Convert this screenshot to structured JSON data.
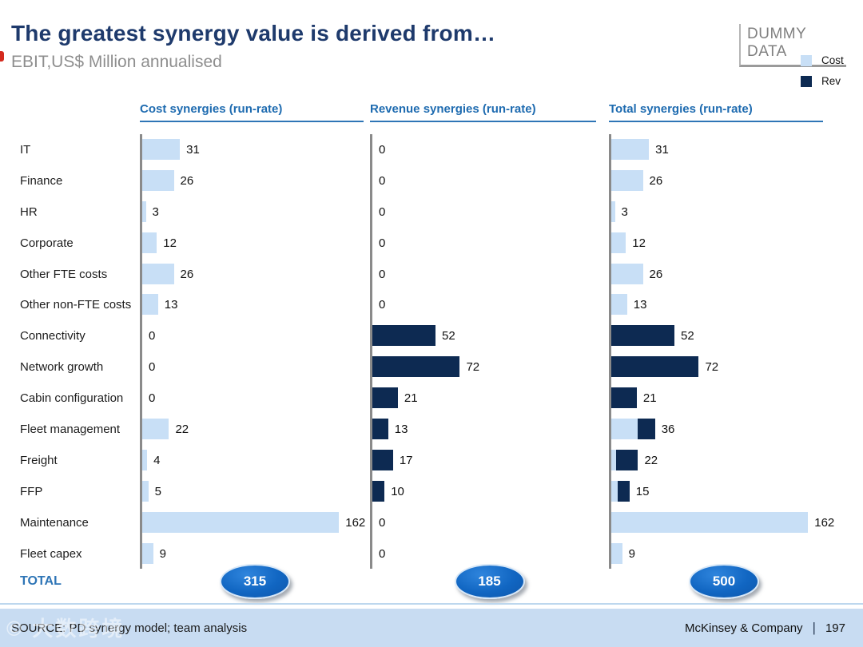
{
  "title": "The greatest synergy value is derived from…",
  "subtitle": "EBIT,US$ Million annualised",
  "stamp": "DUMMY DATA",
  "colors": {
    "cost_bar": "#C8DFF6",
    "rev_bar": "#0D2A52",
    "header_blue": "#1E6BB0",
    "underline_blue": "#2E75B6",
    "title_navy": "#1E3A6C",
    "oval_blue": "#1166C2",
    "axis_gray": "#8A8A8A",
    "footer_band": "#C8DCF2"
  },
  "chart_data": {
    "type": "bar",
    "orientation": "horizontal",
    "title": "The greatest synergy value is derived from…",
    "subtitle": "EBIT,US$ Million annualised",
    "legend": [
      "Cost",
      "Rev"
    ],
    "legend_position": "top-right",
    "grid": false,
    "xlim": [
      0,
      170
    ],
    "total_row_label": "TOTAL",
    "categories": [
      "IT",
      "Finance",
      "HR",
      "Corporate",
      "Other FTE costs",
      "Other non-FTE costs",
      "Connectivity",
      "Network growth",
      "Cabin configuration",
      "Fleet management",
      "Freight",
      "FFP",
      "Maintenance",
      "Fleet capex"
    ],
    "panels": [
      {
        "title": "Cost synergies (run-rate)",
        "series": "Cost",
        "values": [
          31,
          26,
          3,
          12,
          26,
          13,
          0,
          0,
          0,
          22,
          4,
          5,
          162,
          9
        ],
        "total": 315
      },
      {
        "title": "Revenue synergies (run-rate)",
        "series": "Rev",
        "values": [
          0,
          0,
          0,
          0,
          0,
          0,
          52,
          72,
          21,
          13,
          17,
          10,
          0,
          0
        ],
        "total": 185
      },
      {
        "title": "Total synergies (run-rate)",
        "series": "Cost + Rev stacked",
        "values": [
          31,
          26,
          3,
          12,
          26,
          13,
          52,
          72,
          21,
          36,
          22,
          15,
          162,
          9
        ],
        "cost_breakdown": [
          31,
          26,
          3,
          12,
          26,
          13,
          0,
          0,
          0,
          22,
          4,
          5,
          162,
          9
        ],
        "total": 500
      }
    ]
  },
  "footer": {
    "source": "SOURCE: PD synergy model; team analysis",
    "brand": "McKinsey & Company",
    "separator": "|",
    "page": "197",
    "watermark": "© 大数跨境"
  }
}
